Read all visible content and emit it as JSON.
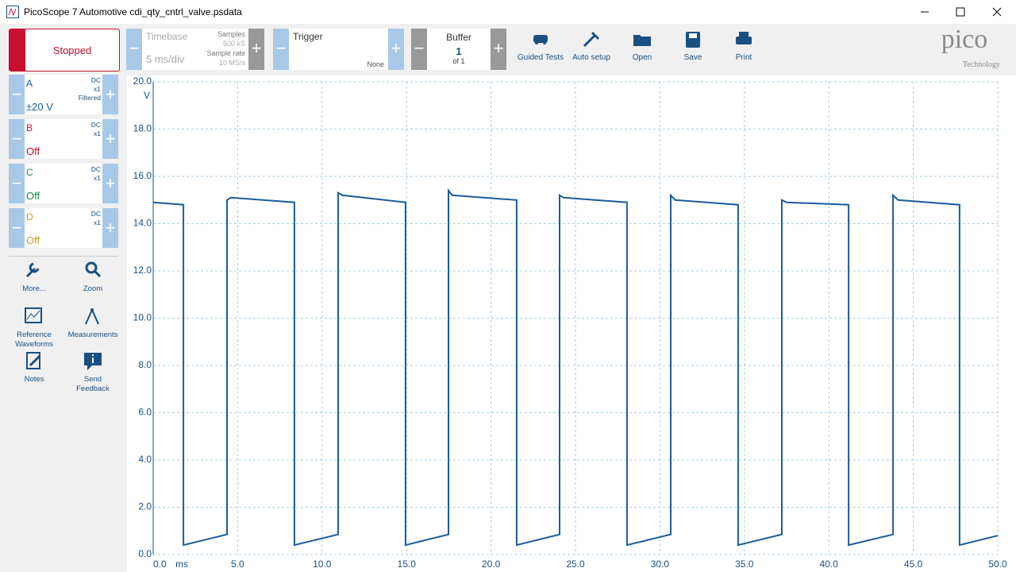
{
  "window": {
    "title": "PicoScope 7 Automotive cdi_qty_cntrl_valve.psdata"
  },
  "toolbar": {
    "run_state": "Stopped",
    "timebase": {
      "label": "Timebase",
      "value": "5 ms/div",
      "samples_label": "Samples",
      "samples": "500 kS",
      "rate_label": "Sample rate",
      "rate": "10 MS/s"
    },
    "trigger": {
      "label": "Trigger",
      "mode": "None"
    },
    "buffer": {
      "label": "Buffer",
      "current": "1",
      "total": "of 1"
    },
    "buttons": [
      "Guided Tests",
      "Auto setup",
      "Open",
      "Save",
      "Print"
    ],
    "logo": {
      "name": "pico",
      "tagline": "Technology"
    }
  },
  "channels": [
    {
      "name": "A",
      "state": "±20 V",
      "coupling": "DC",
      "probe": "x1",
      "filter": "Filtered",
      "color": "#1a5c9c"
    },
    {
      "name": "B",
      "state": "Off",
      "coupling": "DC",
      "probe": "x1",
      "color": "#c8102e"
    },
    {
      "name": "C",
      "state": "Off",
      "coupling": "DC",
      "probe": "x1",
      "color": "#17883a"
    },
    {
      "name": "D",
      "state": "Off",
      "coupling": "DC",
      "probe": "x1",
      "color": "#c89b1e"
    }
  ],
  "tools": [
    "More...",
    "Zoom",
    "Reference Waveforms",
    "Measurements",
    "Notes",
    "Send Feedback"
  ],
  "chart_data": {
    "type": "line",
    "y_unit": "V",
    "x_unit": "ms",
    "color": "#1a5c9c",
    "grid": true,
    "x": [
      0,
      1.79,
      1.79,
      4.37,
      4.37,
      4.6,
      8.36,
      8.36,
      10.95,
      10.95,
      11.2,
      14.94,
      14.94,
      17.48,
      17.48,
      17.7,
      21.52,
      21.52,
      24.06,
      24.06,
      24.3,
      28.05,
      28.05,
      30.64,
      30.64,
      30.9,
      34.63,
      34.63,
      37.22,
      37.22,
      37.5,
      41.17,
      41.17,
      43.8,
      43.8,
      44.1,
      47.74,
      47.74,
      50
    ],
    "values": [
      14.9,
      14.8,
      0.4,
      0.85,
      15.0,
      15.1,
      14.9,
      0.4,
      0.85,
      15.3,
      15.2,
      14.9,
      0.4,
      0.85,
      15.4,
      15.2,
      15.0,
      0.4,
      0.85,
      15.2,
      15.1,
      14.9,
      0.4,
      0.85,
      15.2,
      15.0,
      14.8,
      0.4,
      0.85,
      15.0,
      14.9,
      14.8,
      0.4,
      0.85,
      15.2,
      15.0,
      14.8,
      0.4,
      0.8
    ],
    "xlim": [
      0,
      50
    ],
    "xticks": [
      {
        "value": 0,
        "label": "0.0"
      },
      {
        "value": 5,
        "label": "5.0"
      },
      {
        "value": 10,
        "label": "10.0"
      },
      {
        "value": 15,
        "label": "15.0"
      },
      {
        "value": 20,
        "label": "20.0"
      },
      {
        "value": 25,
        "label": "25.0"
      },
      {
        "value": 30,
        "label": "30.0"
      },
      {
        "value": 35,
        "label": "35.0"
      },
      {
        "value": 40,
        "label": "40.0"
      },
      {
        "value": 45,
        "label": "45.0"
      },
      {
        "value": 50,
        "label": "50.0"
      }
    ],
    "ylim": [
      0,
      20
    ],
    "yticks": [
      {
        "value": 0,
        "label": "0.0"
      },
      {
        "value": 2,
        "label": "2.0"
      },
      {
        "value": 4,
        "label": "4.0"
      },
      {
        "value": 6,
        "label": "6.0"
      },
      {
        "value": 8,
        "label": "8.0"
      },
      {
        "value": 10,
        "label": "10.0"
      },
      {
        "value": 12,
        "label": "12.0"
      },
      {
        "value": 14,
        "label": "14.0"
      },
      {
        "value": 16,
        "label": "16.0"
      },
      {
        "value": 18,
        "label": "18.0"
      },
      {
        "value": 20,
        "label": "20.0"
      }
    ]
  }
}
